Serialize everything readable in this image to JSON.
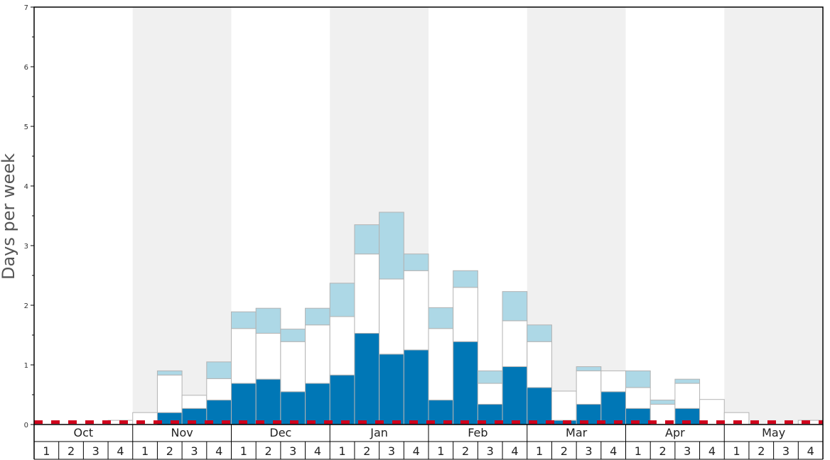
{
  "chart_data": {
    "type": "bar",
    "stacked": true,
    "ylabel": "Days per week",
    "ylim": [
      0,
      7
    ],
    "y_ticks": [
      "0",
      "1",
      "2",
      "3",
      "4",
      "5",
      "6",
      "7"
    ],
    "months": [
      "Oct",
      "Nov",
      "Dec",
      "Jan",
      "Feb",
      "Mar",
      "Apr",
      "May"
    ],
    "weeks_per_month": [
      "1",
      "2",
      "3",
      "4"
    ],
    "alternate_month_shading": true,
    "reference_line": {
      "value": 0.04,
      "color": "#d0021b",
      "style": "dashed"
    },
    "series_colors": [
      "#0077b6",
      "#ffffff",
      "#add8e6"
    ],
    "series": [
      {
        "values": [
          0,
          0,
          0,
          0,
          0,
          0.2,
          0.27,
          0.41,
          0.69,
          0.76,
          0.55,
          0.69,
          0.83,
          1.53,
          1.18,
          1.25,
          0.41,
          1.39,
          0.34,
          0.97,
          0.62,
          0.07,
          0.34,
          0.55,
          0.27,
          0,
          0.27,
          0,
          0,
          0,
          0,
          0
        ]
      },
      {
        "values": [
          0,
          0,
          0,
          0.07,
          0.2,
          0.63,
          0.22,
          0.36,
          0.92,
          0.77,
          0.84,
          0.98,
          0.98,
          1.33,
          1.26,
          1.33,
          1.2,
          0.91,
          0.35,
          0.77,
          0.77,
          0.49,
          0.56,
          0.35,
          0.35,
          0.34,
          0.42,
          0.42,
          0.2,
          0,
          0,
          0.07
        ]
      },
      {
        "values": [
          0,
          0,
          0,
          0,
          0,
          0.07,
          0,
          0.28,
          0.28,
          0.42,
          0.21,
          0.28,
          0.56,
          0.49,
          1.12,
          0.28,
          0.35,
          0.28,
          0.21,
          0.49,
          0.28,
          0,
          0.07,
          0,
          0.28,
          0.07,
          0.07,
          0,
          0,
          0,
          0,
          0
        ]
      }
    ]
  }
}
